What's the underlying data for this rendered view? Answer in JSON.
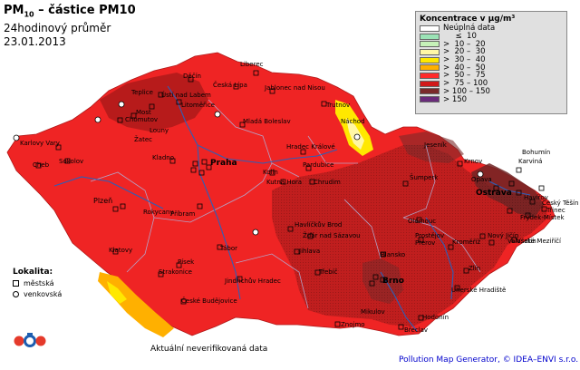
{
  "title": {
    "main": "PM",
    "sub_index": "10",
    "main_rest": " – částice PM10",
    "line2": "24hodinový průměr",
    "date": "23.01.2013"
  },
  "legend": {
    "title": "Koncentrace v µg/m³",
    "rows": [
      {
        "label": "Neúplná data",
        "color": "#ffffff"
      },
      {
        "label": "     ≤  10",
        "color": "#9be3b6"
      },
      {
        "label": ">  10 –  20",
        "color": "#c6f2b8"
      },
      {
        "label": ">  20 –  30",
        "color": "#fff7a6"
      },
      {
        "label": ">  30 –  40",
        "color": "#ffe800"
      },
      {
        "label": ">  40 –  50",
        "color": "#ffb000"
      },
      {
        "label": ">  50 –  75",
        "color": "#ff2a2a"
      },
      {
        "label": ">  75 – 100",
        "color": "#d11a1a"
      },
      {
        "label": "> 100 – 150",
        "color": "#7a2a2a"
      },
      {
        "label": "> 150",
        "color": "#6a2b7a"
      }
    ]
  },
  "lokalita": {
    "heading": "Lokalita:",
    "urban": "městská",
    "rural": "venkovská"
  },
  "footer": {
    "note": "Aktuální neverifikovaná data",
    "credit": "Pollution Map Generator, © IDEA–ENVI s.r.o."
  },
  "cities": [
    {
      "name": "Praha"
    },
    {
      "name": "Brno"
    },
    {
      "name": "Ostrava"
    },
    {
      "name": "Plzeň"
    },
    {
      "name": "Liberec"
    },
    {
      "name": "Děčín"
    },
    {
      "name": "Ústí nad Labem"
    },
    {
      "name": "Teplice"
    },
    {
      "name": "Litoměřice"
    },
    {
      "name": "Chomutov"
    },
    {
      "name": "Most"
    },
    {
      "name": "Louny"
    },
    {
      "name": "Žatec"
    },
    {
      "name": "Česká Lípa"
    },
    {
      "name": "Jablonec nad Nisou"
    },
    {
      "name": "Trutnov"
    },
    {
      "name": "Náchod"
    },
    {
      "name": "Mladá Boleslav"
    },
    {
      "name": "Hradec Králové"
    },
    {
      "name": "Pardubice"
    },
    {
      "name": "Kolín"
    },
    {
      "name": "Kutná Hora"
    },
    {
      "name": "Chrudim"
    },
    {
      "name": "Kladno"
    },
    {
      "name": "Karlovy Vary"
    },
    {
      "name": "Sokolov"
    },
    {
      "name": "Cheb"
    },
    {
      "name": "Rokycany"
    },
    {
      "name": "Příbram"
    },
    {
      "name": "Klatovy"
    },
    {
      "name": "Písek"
    },
    {
      "name": "Strakonice"
    },
    {
      "name": "Tábor"
    },
    {
      "name": "České Budějovice"
    },
    {
      "name": "Jindřichův Hradec"
    },
    {
      "name": "Jihlava"
    },
    {
      "name": "Havlíčkův Brod"
    },
    {
      "name": "Žďár nad Sázavou"
    },
    {
      "name": "Třebíč"
    },
    {
      "name": "Blansko"
    },
    {
      "name": "Znojmo"
    },
    {
      "name": "Břeclav"
    },
    {
      "name": "Hodonín"
    },
    {
      "name": "Uherské Hradiště"
    },
    {
      "name": "Zlín"
    },
    {
      "name": "Kroměříž"
    },
    {
      "name": "Přerov"
    },
    {
      "name": "Prostějov"
    },
    {
      "name": "Olomouc"
    },
    {
      "name": "Šumperk"
    },
    {
      "name": "Jeseník"
    },
    {
      "name": "Krnov"
    },
    {
      "name": "Bohumín"
    },
    {
      "name": "Karviná"
    },
    {
      "name": "Havířov"
    },
    {
      "name": "Český Těšín"
    },
    {
      "name": "Třinec"
    },
    {
      "name": "Frýdek-Místek"
    },
    {
      "name": "Nový Jičín"
    },
    {
      "name": "Vsetín"
    },
    {
      "name": "Valašské Meziříčí"
    },
    {
      "name": "Opava"
    },
    {
      "name": "Mikulov"
    }
  ]
}
